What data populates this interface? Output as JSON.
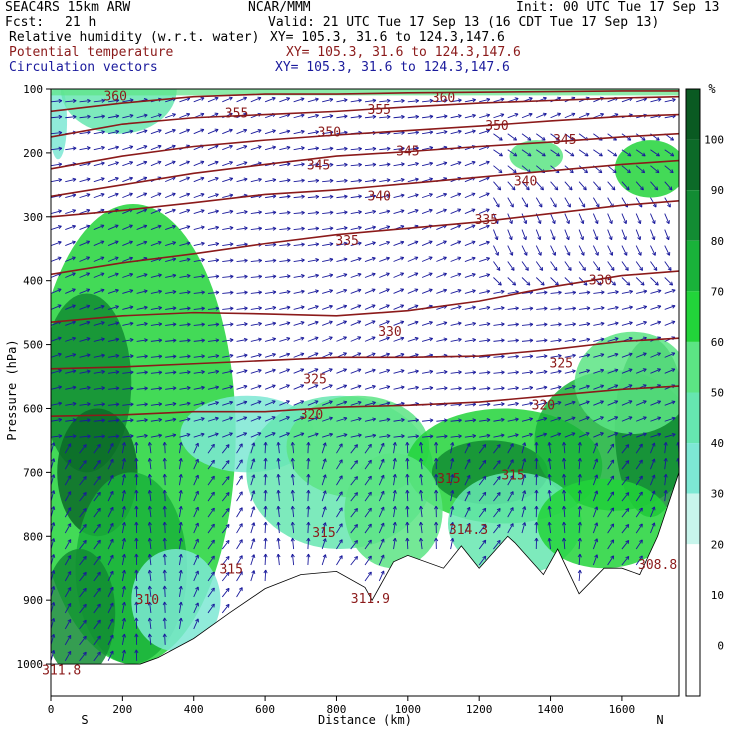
{
  "header": {
    "model": "SEAC4RS 15km ARW",
    "center": "NCAR/MMM",
    "init": "Init: 00 UTC Tue 17 Sep 13",
    "fcst_label": "Fcst:",
    "fcst_value": "21 h",
    "valid": "Valid: 21 UTC Tue 17 Sep 13 (16 CDT Tue 17 Sep 13)",
    "fields": [
      {
        "name": "Relative humidity (w.r.t. water)",
        "xy": "XY= 105.3, 31.6 to 124.3,147.6",
        "color": "#000000"
      },
      {
        "name": "Potential temperature",
        "xy": "XY= 105.3, 31.6 to 124.3,147.6",
        "color": "#8b1a1a"
      },
      {
        "name": "Circulation vectors",
        "xy": "XY= 105.3, 31.6 to 124.3,147.6",
        "color": "#1a1a9c"
      }
    ]
  },
  "chart_data": {
    "type": "heatmap",
    "subtype": "vertical cross-section with contours and vectors",
    "xlabel": "Distance (km)",
    "ylabel": "Pressure (hPa)",
    "x_ticks": [
      0,
      200,
      400,
      600,
      800,
      1000,
      1200,
      1400,
      1600
    ],
    "y_ticks": [
      100,
      200,
      300,
      400,
      500,
      600,
      700,
      800,
      900,
      1000
    ],
    "xlim": [
      0,
      1760
    ],
    "ylim": [
      1050,
      100
    ],
    "x_end_labels": {
      "left": "S",
      "right": "N"
    },
    "colorbar": {
      "unit": "%",
      "ticks": [
        0,
        10,
        20,
        30,
        40,
        50,
        60,
        70,
        80,
        90,
        100
      ],
      "colors": [
        "#ffffff",
        "#ffffff",
        "#ffffff",
        "#c8f5ec",
        "#7de8d4",
        "#66e6b0",
        "#5ce484",
        "#22d43a",
        "#19b23a",
        "#128c33",
        "#0c6a28",
        "#0a5a22"
      ]
    },
    "theta_contours": [
      {
        "level": 360,
        "points": [
          [
            0,
            135
          ],
          [
            200,
            122
          ],
          [
            400,
            112
          ],
          [
            600,
            108
          ],
          [
            800,
            108
          ],
          [
            1000,
            106
          ],
          [
            1200,
            105
          ],
          [
            1400,
            104
          ],
          [
            1600,
            103
          ],
          [
            1760,
            103
          ]
        ],
        "label_positions": [
          [
            180,
            112
          ],
          [
            1100,
            114
          ]
        ]
      },
      {
        "level": 355,
        "points": [
          [
            0,
            175
          ],
          [
            200,
            155
          ],
          [
            400,
            145
          ],
          [
            600,
            140
          ],
          [
            800,
            135
          ],
          [
            1000,
            128
          ],
          [
            1200,
            122
          ],
          [
            1400,
            118
          ],
          [
            1600,
            114
          ],
          [
            1760,
            112
          ]
        ],
        "label_positions": [
          [
            520,
            138
          ],
          [
            920,
            133
          ]
        ]
      },
      {
        "level": 350,
        "points": [
          [
            0,
            225
          ],
          [
            200,
            205
          ],
          [
            400,
            190
          ],
          [
            600,
            180
          ],
          [
            800,
            172
          ],
          [
            1000,
            165
          ],
          [
            1200,
            158
          ],
          [
            1400,
            150
          ],
          [
            1600,
            143
          ],
          [
            1760,
            140
          ]
        ],
        "label_positions": [
          [
            780,
            168
          ],
          [
            1250,
            158
          ]
        ]
      },
      {
        "level": 345,
        "points": [
          [
            0,
            268
          ],
          [
            200,
            250
          ],
          [
            400,
            232
          ],
          [
            600,
            218
          ],
          [
            800,
            205
          ],
          [
            1000,
            198
          ],
          [
            1200,
            190
          ],
          [
            1400,
            183
          ],
          [
            1600,
            175
          ],
          [
            1760,
            170
          ]
        ],
        "label_positions": [
          [
            750,
            220
          ],
          [
            1000,
            198
          ],
          [
            1440,
            180
          ]
        ]
      },
      {
        "level": 340,
        "points": [
          [
            0,
            300
          ],
          [
            200,
            290
          ],
          [
            400,
            278
          ],
          [
            600,
            265
          ],
          [
            800,
            258
          ],
          [
            1000,
            248
          ],
          [
            1200,
            238
          ],
          [
            1400,
            228
          ],
          [
            1600,
            218
          ],
          [
            1760,
            212
          ]
        ],
        "label_positions": [
          [
            920,
            268
          ],
          [
            1330,
            245
          ]
        ]
      },
      {
        "level": 335,
        "points": [
          [
            0,
            390
          ],
          [
            200,
            372
          ],
          [
            400,
            358
          ],
          [
            600,
            342
          ],
          [
            800,
            328
          ],
          [
            1000,
            318
          ],
          [
            1200,
            308
          ],
          [
            1400,
            295
          ],
          [
            1600,
            282
          ],
          [
            1760,
            275
          ]
        ],
        "label_positions": [
          [
            830,
            338
          ],
          [
            1220,
            305
          ]
        ]
      },
      {
        "level": 330,
        "points": [
          [
            0,
            465
          ],
          [
            200,
            455
          ],
          [
            400,
            450
          ],
          [
            600,
            452
          ],
          [
            800,
            455
          ],
          [
            1000,
            447
          ],
          [
            1200,
            432
          ],
          [
            1400,
            410
          ],
          [
            1600,
            392
          ],
          [
            1760,
            385
          ]
        ],
        "label_positions": [
          [
            950,
            480
          ],
          [
            1540,
            400
          ]
        ]
      },
      {
        "level": 325,
        "points": [
          [
            0,
            538
          ],
          [
            200,
            535
          ],
          [
            400,
            530
          ],
          [
            600,
            525
          ],
          [
            800,
            520
          ],
          [
            1000,
            520
          ],
          [
            1200,
            518
          ],
          [
            1400,
            508
          ],
          [
            1600,
            495
          ],
          [
            1760,
            490
          ]
        ],
        "label_positions": [
          [
            740,
            555
          ],
          [
            1430,
            530
          ]
        ]
      },
      {
        "level": 320,
        "points": [
          [
            0,
            612
          ],
          [
            200,
            610
          ],
          [
            400,
            605
          ],
          [
            600,
            605
          ],
          [
            800,
            598
          ],
          [
            1000,
            595
          ],
          [
            1200,
            590
          ],
          [
            1400,
            580
          ],
          [
            1600,
            570
          ],
          [
            1760,
            565
          ]
        ],
        "label_positions": [
          [
            730,
            610
          ],
          [
            1380,
            595
          ]
        ]
      }
    ],
    "theta_labels_extra": [
      {
        "text": "315",
        "x": 765,
        "y": 795
      },
      {
        "text": "315",
        "x": 1115,
        "y": 710
      },
      {
        "text": "315",
        "x": 1295,
        "y": 705
      },
      {
        "text": "315",
        "x": 505,
        "y": 852
      },
      {
        "text": "314.3",
        "x": 1170,
        "y": 790
      },
      {
        "text": "311.9",
        "x": 895,
        "y": 898
      },
      {
        "text": "310",
        "x": 270,
        "y": 900
      },
      {
        "text": "308.8",
        "x": 1700,
        "y": 845
      },
      {
        "text": "311.8",
        "x": 30,
        "y": 1010
      }
    ],
    "terrain_surface_hPa": [
      [
        0,
        1000
      ],
      [
        200,
        1000
      ],
      [
        250,
        1000
      ],
      [
        300,
        990
      ],
      [
        400,
        960
      ],
      [
        500,
        920
      ],
      [
        600,
        882
      ],
      [
        700,
        860
      ],
      [
        800,
        855
      ],
      [
        880,
        880
      ],
      [
        900,
        900
      ],
      [
        960,
        840
      ],
      [
        1000,
        830
      ],
      [
        1100,
        850
      ],
      [
        1150,
        815
      ],
      [
        1200,
        850
      ],
      [
        1280,
        800
      ],
      [
        1300,
        810
      ],
      [
        1380,
        860
      ],
      [
        1420,
        820
      ],
      [
        1480,
        890
      ],
      [
        1550,
        850
      ],
      [
        1600,
        850
      ],
      [
        1650,
        860
      ],
      [
        1700,
        800
      ],
      [
        1760,
        700
      ]
    ]
  }
}
